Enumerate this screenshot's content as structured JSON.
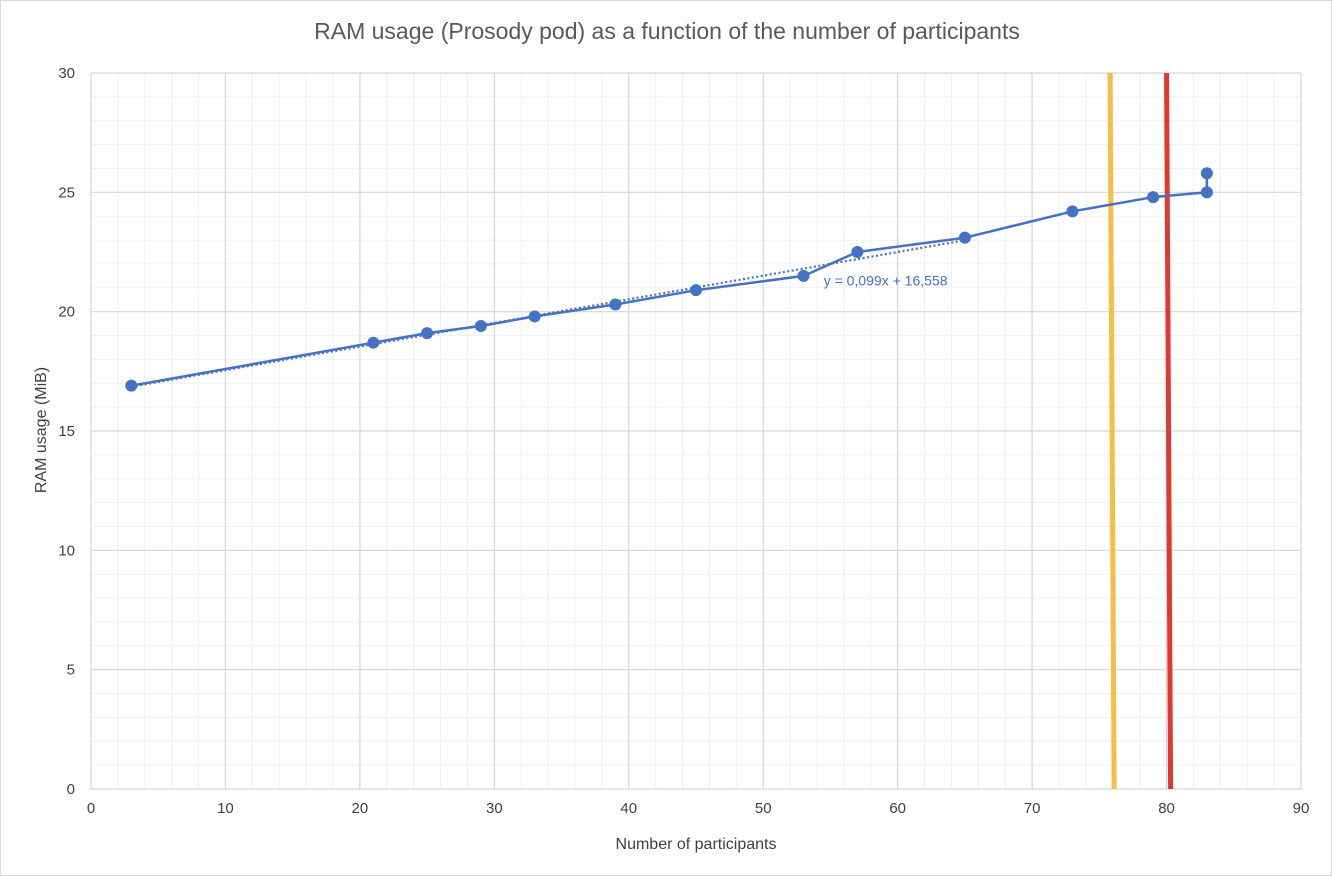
{
  "chart_data": {
    "type": "scatter",
    "title": "RAM usage (Prosody pod) as a function of the number of participants",
    "xlabel": "Number of participants",
    "ylabel": "RAM usage (MiB)",
    "xlim": [
      0,
      90
    ],
    "ylim": [
      0,
      30
    ],
    "x_major_step": 10,
    "x_minor_step": 2,
    "y_major_step": 5,
    "y_minor_step": 1,
    "x_ticks": [
      "0",
      "10",
      "20",
      "30",
      "40",
      "50",
      "60",
      "70",
      "80",
      "90"
    ],
    "y_ticks": [
      "0",
      "5",
      "10",
      "15",
      "20",
      "25",
      "30"
    ],
    "grid": true,
    "legend": "none",
    "series": [
      {
        "style": "markers-with-lines",
        "color": "#4472c4",
        "points": [
          {
            "x": 3,
            "y": 16.9
          },
          {
            "x": 21,
            "y": 18.7
          },
          {
            "x": 25,
            "y": 19.1
          },
          {
            "x": 29,
            "y": 19.4
          },
          {
            "x": 33,
            "y": 19.8
          },
          {
            "x": 39,
            "y": 20.3
          },
          {
            "x": 45,
            "y": 20.9
          },
          {
            "x": 53,
            "y": 21.5
          },
          {
            "x": 57,
            "y": 22.5
          },
          {
            "x": 65,
            "y": 23.1
          },
          {
            "x": 73,
            "y": 24.2
          },
          {
            "x": 79,
            "y": 24.8
          },
          {
            "x": 83,
            "y": 25.0
          },
          {
            "x": 83,
            "y": 25.8
          }
        ]
      }
    ],
    "trendline": {
      "type": "linear",
      "slope": 0.099,
      "intercept": 16.558,
      "x_range": [
        3,
        65
      ],
      "label": "y = 0,099x + 16,558",
      "label_position": {
        "x": 54.5,
        "y": 21.1
      },
      "color": "#4472c4",
      "style": "dotted"
    },
    "vertical_lines": [
      {
        "x_top": 75.8,
        "x_bottom": 76.1,
        "color": "#f6be44"
      },
      {
        "x_top": 80.0,
        "x_bottom": 80.3,
        "color": "#e2382e"
      }
    ]
  }
}
